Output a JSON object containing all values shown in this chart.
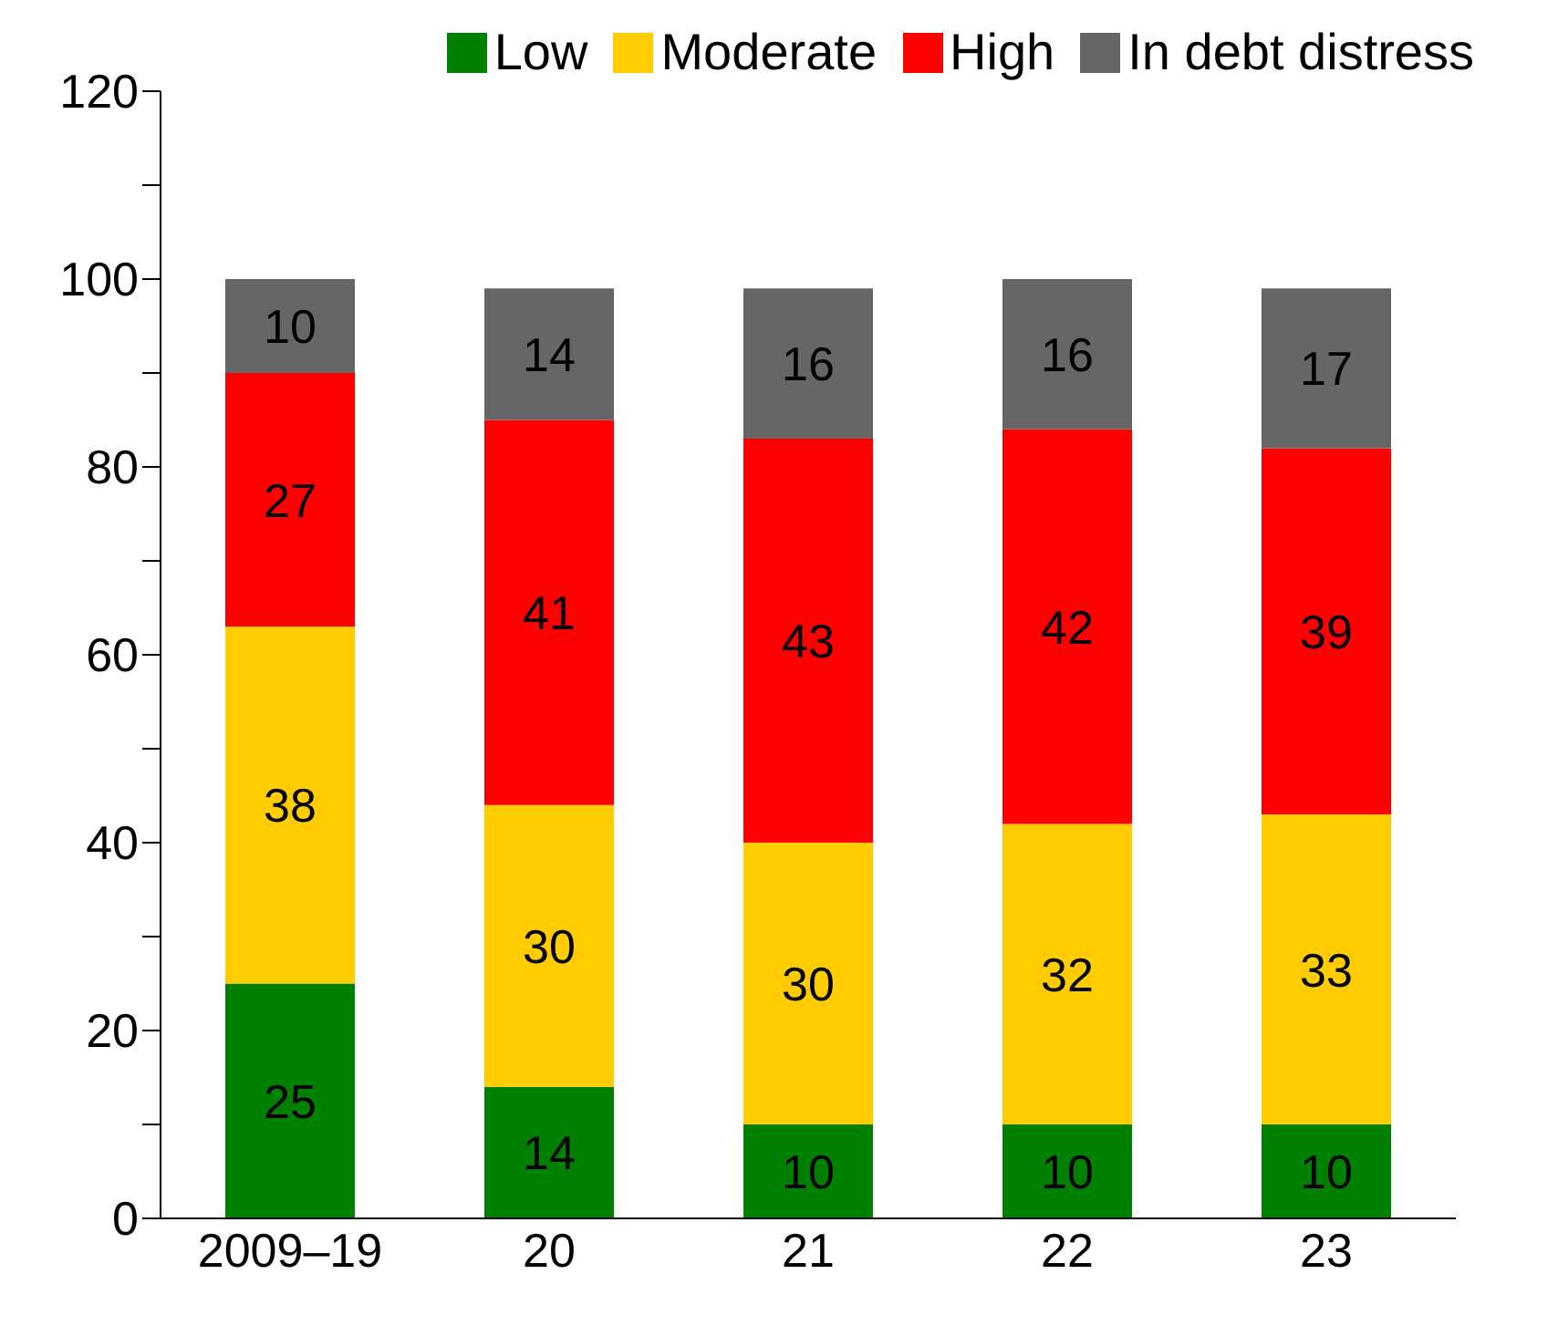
{
  "chart_data": {
    "type": "bar",
    "stacked": true,
    "categories": [
      "2009–19",
      "20",
      "21",
      "22",
      "23"
    ],
    "series": [
      {
        "name": "Low",
        "color": "#008000",
        "values": [
          25,
          14,
          10,
          10,
          10
        ]
      },
      {
        "name": "Moderate",
        "color": "#ffcc00",
        "values": [
          38,
          30,
          30,
          32,
          33
        ]
      },
      {
        "name": "High",
        "color": "#ff0000",
        "values": [
          27,
          41,
          43,
          42,
          39
        ]
      },
      {
        "name": "In debt distress",
        "color": "#666666",
        "values": [
          10,
          14,
          16,
          16,
          17
        ]
      }
    ],
    "ylim": [
      0,
      120
    ],
    "yticks": [
      0,
      {
        "value": 10,
        "label": null
      },
      20,
      {
        "value": 30,
        "label": null
      },
      40,
      {
        "value": 50,
        "label": null
      },
      60,
      {
        "value": 70,
        "label": null
      },
      80,
      {
        "value": 90,
        "label": null
      },
      100,
      {
        "value": 110,
        "label": null
      },
      120
    ],
    "data_labels": true,
    "legend": "top right",
    "grid": false
  }
}
